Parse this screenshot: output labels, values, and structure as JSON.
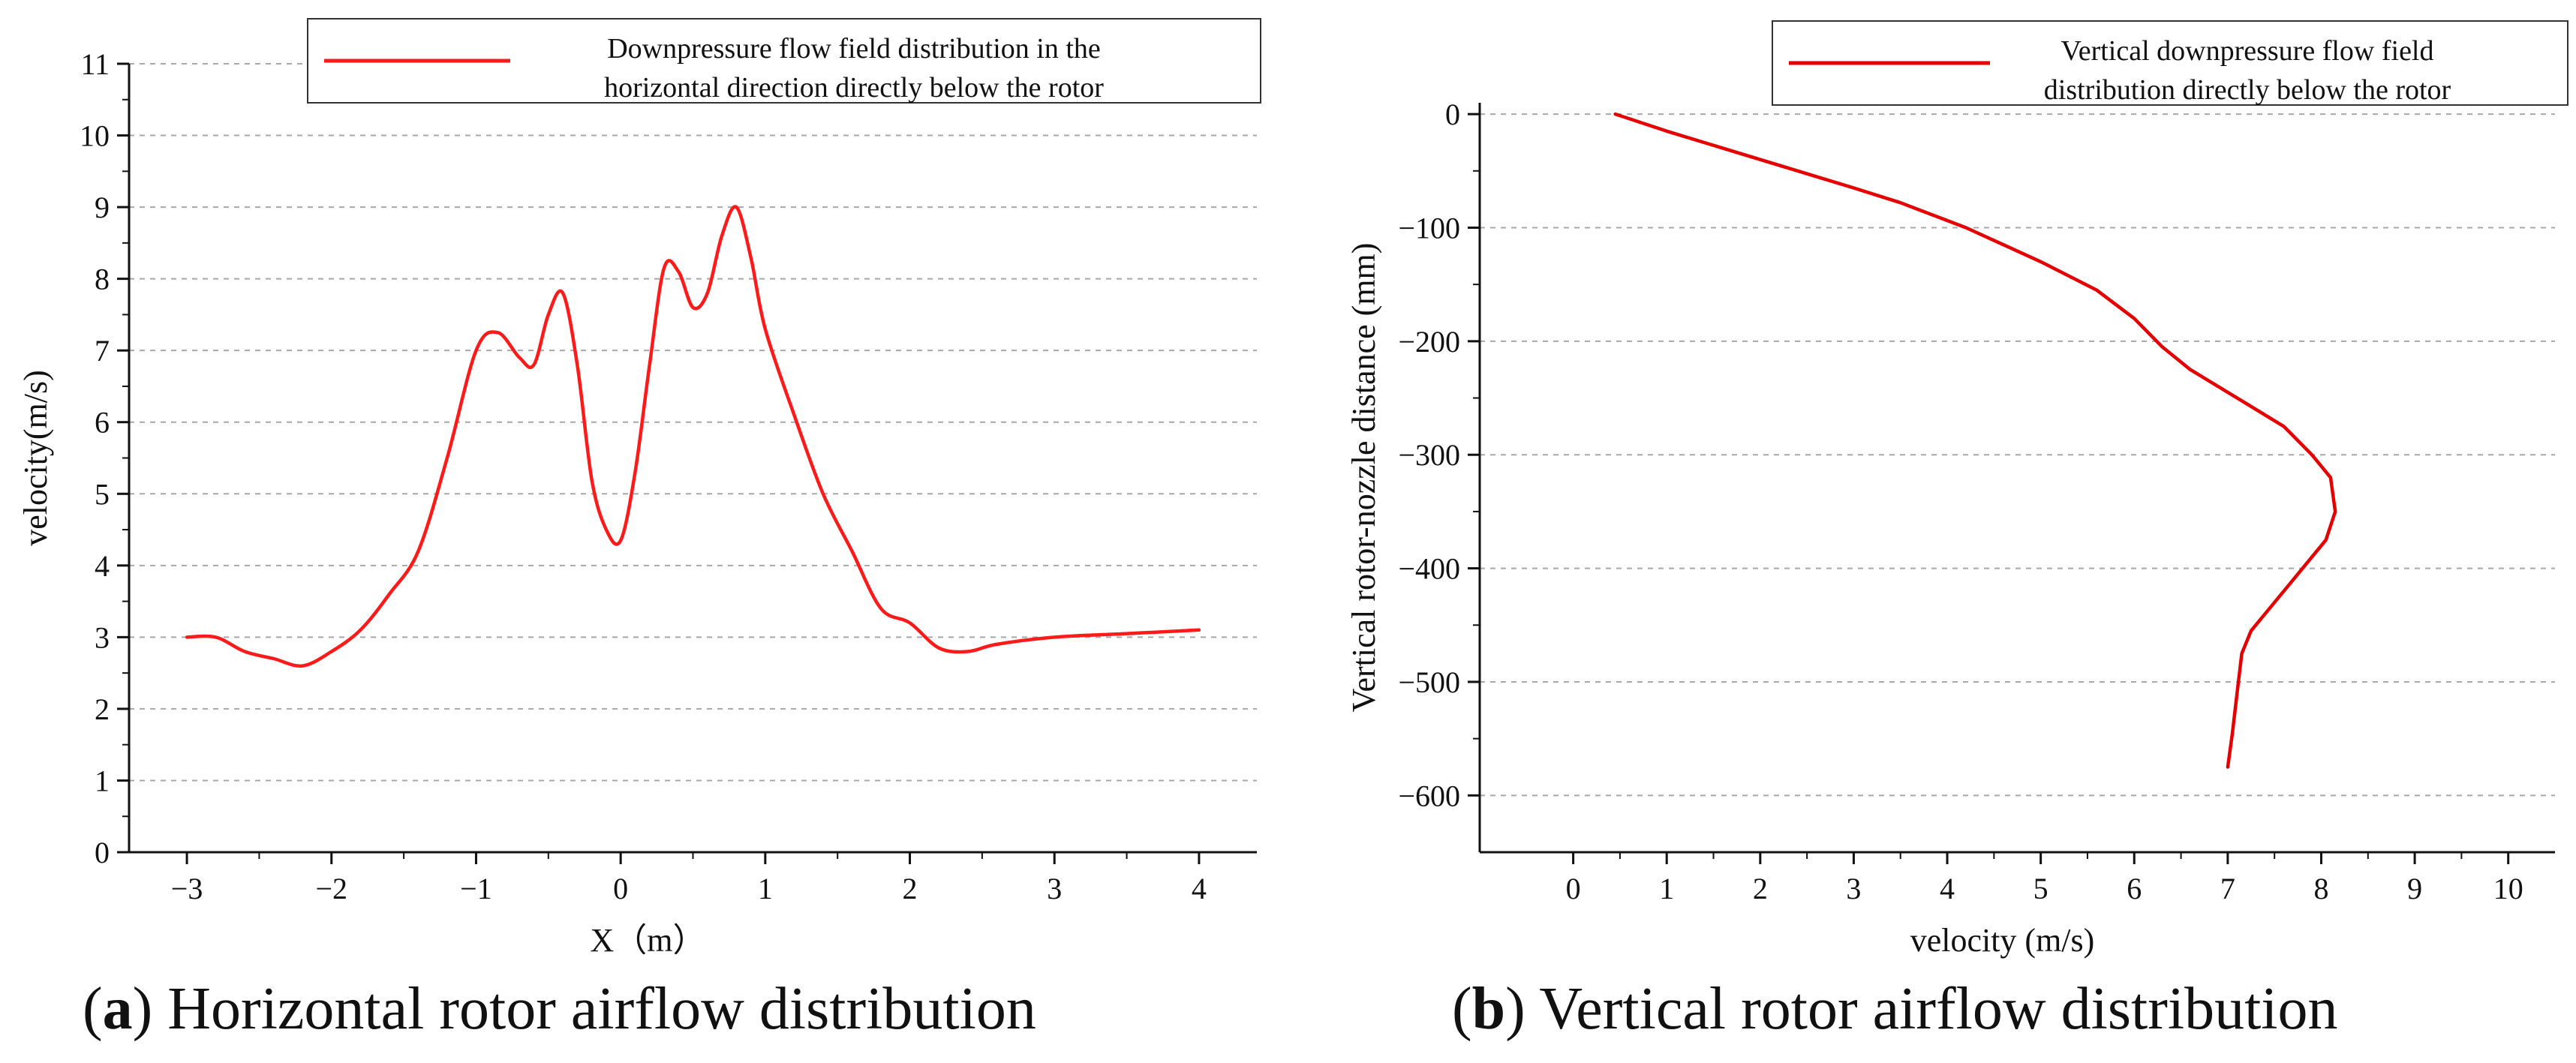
{
  "chart_data": [
    {
      "type": "line",
      "panel": "a",
      "caption_letter": "a",
      "caption_text": "Horizontal rotor airflow distribution",
      "title": "",
      "xlabel": "X（m）",
      "ylabel": "velocity(m/s)",
      "xlim": [
        -3.4,
        4.4
      ],
      "ylim": [
        0,
        11
      ],
      "xticks": [
        -3,
        -2,
        -1,
        0,
        1,
        2,
        3,
        4
      ],
      "yticks": [
        0,
        1,
        2,
        3,
        4,
        5,
        6,
        7,
        8,
        9,
        10,
        11
      ],
      "grid": "horizontal dashed",
      "legend": {
        "position": "top-right",
        "lines": [
          "Downpressure flow field distribution in the",
          "horizontal direction directly below the rotor"
        ]
      },
      "series": [
        {
          "name": "Downpressure flow field distribution in the horizontal direction directly below the rotor",
          "color": "#ff1a1a",
          "x": [
            -3.0,
            -2.8,
            -2.6,
            -2.4,
            -2.2,
            -2.0,
            -1.8,
            -1.6,
            -1.4,
            -1.2,
            -1.0,
            -0.85,
            -0.7,
            -0.6,
            -0.5,
            -0.4,
            -0.3,
            -0.2,
            -0.1,
            0.0,
            0.1,
            0.2,
            0.3,
            0.4,
            0.5,
            0.6,
            0.7,
            0.8,
            0.9,
            1.0,
            1.2,
            1.4,
            1.6,
            1.8,
            2.0,
            2.2,
            2.4,
            2.6,
            3.0,
            3.5,
            4.0
          ],
          "y": [
            3.0,
            3.0,
            2.8,
            2.7,
            2.6,
            2.8,
            3.1,
            3.6,
            4.2,
            5.5,
            7.0,
            7.25,
            6.9,
            6.8,
            7.5,
            7.8,
            6.8,
            5.2,
            4.5,
            4.35,
            5.3,
            6.8,
            8.15,
            8.1,
            7.6,
            7.8,
            8.6,
            9.0,
            8.3,
            7.3,
            6.1,
            5.0,
            4.2,
            3.4,
            3.2,
            2.85,
            2.8,
            2.9,
            3.0,
            3.05,
            3.1
          ]
        }
      ]
    },
    {
      "type": "line",
      "panel": "b",
      "caption_letter": "b",
      "caption_text": "Vertical rotor airflow distribution",
      "title": "",
      "xlabel": "velocity (m/s)",
      "ylabel": "Vertical rotor-nozzle distance (mm)",
      "xlim": [
        -1,
        10.5
      ],
      "ylim": [
        -650,
        10
      ],
      "xticks": [
        0,
        1,
        2,
        3,
        4,
        5,
        6,
        7,
        8,
        9,
        10
      ],
      "yticks": [
        0,
        -100,
        -200,
        -300,
        -400,
        -500,
        -600
      ],
      "grid": "horizontal dashed",
      "legend": {
        "position": "top-right",
        "lines": [
          "Vertical downpressure flow field",
          "distribution directly below the rotor"
        ]
      },
      "series": [
        {
          "name": "Vertical downpressure flow field distribution directly below the rotor",
          "color": "#e60000",
          "x": [
            0.45,
            1.0,
            2.0,
            3.0,
            3.5,
            4.2,
            5.0,
            5.6,
            6.0,
            6.3,
            6.6,
            7.2,
            7.6,
            7.9,
            8.1,
            8.15,
            8.05,
            7.8,
            7.5,
            7.25,
            7.15,
            7.1,
            7.05,
            7.0
          ],
          "y": [
            0,
            -15,
            -40,
            -65,
            -78,
            -100,
            -130,
            -155,
            -180,
            -205,
            -225,
            -255,
            -275,
            -300,
            -320,
            -350,
            -375,
            -400,
            -430,
            -455,
            -475,
            -510,
            -545,
            -575
          ]
        }
      ]
    }
  ]
}
